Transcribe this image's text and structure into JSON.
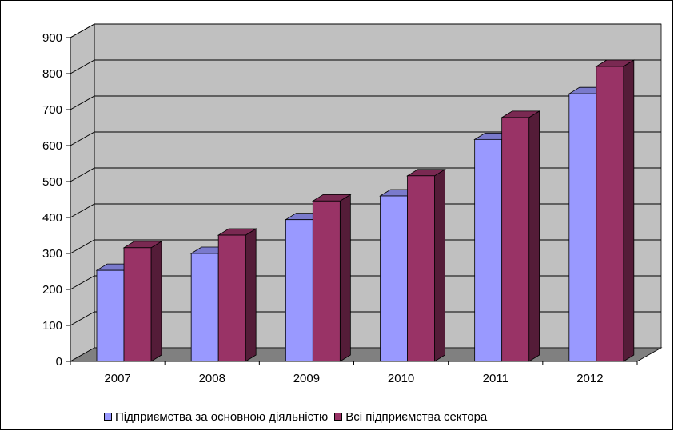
{
  "chart_data": {
    "type": "bar",
    "categories": [
      "2007",
      "2008",
      "2009",
      "2010",
      "2011",
      "2012"
    ],
    "series": [
      {
        "name": "Підприємства за основною діяльністю",
        "color": "#9999ff",
        "values": [
          253,
          300,
          394,
          460,
          617,
          744
        ]
      },
      {
        "name": "Всі підприємства сектора",
        "color": "#993366",
        "values": [
          316,
          351,
          446,
          516,
          678,
          820
        ]
      }
    ],
    "ylim": [
      0,
      900
    ],
    "yticks": [
      0,
      100,
      200,
      300,
      400,
      500,
      600,
      700,
      800,
      900
    ],
    "title": "",
    "xlabel": "",
    "ylabel": "",
    "grid": true,
    "legend_position": "bottom",
    "wall_color": "#c0c0c0",
    "floor_color": "#808080"
  }
}
